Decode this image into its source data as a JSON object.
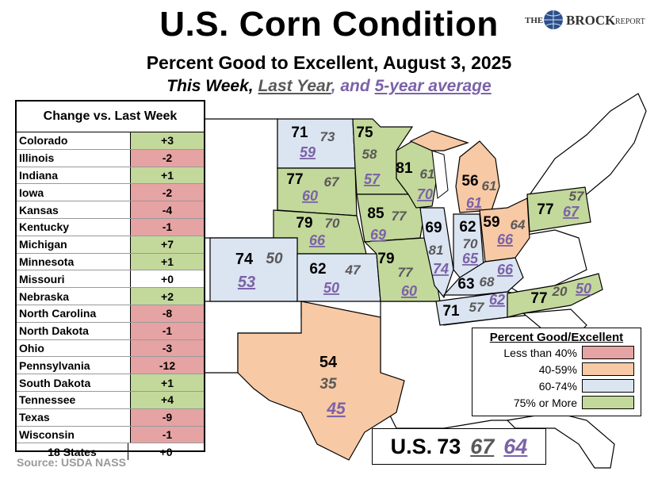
{
  "header": {
    "title": "U.S. Corn Condition",
    "subtitle": "Percent Good to Excellent, August 3, 2025",
    "subtitle2_this": "This Week,",
    "subtitle2_last": "Last Year",
    "subtitle2_and": ", and",
    "subtitle2_avg": "5-year average"
  },
  "brand": {
    "the": "THE",
    "name": "BROCK",
    "report": "REPORT"
  },
  "colors": {
    "less40": "#e6a3a3",
    "r40_59": "#f7c9a4",
    "r60_74": "#dbe4f1",
    "r75": "#c3d89b",
    "last_year": "#595959",
    "avg": "#7b62a8",
    "white": "#ffffff"
  },
  "change_table": {
    "header": "Change vs. Last Week",
    "rows": [
      {
        "state": "Colorado",
        "change": "+3",
        "color": "#c3d89b"
      },
      {
        "state": "Illinois",
        "change": "-2",
        "color": "#e6a3a3"
      },
      {
        "state": "Indiana",
        "change": "+1",
        "color": "#c3d89b"
      },
      {
        "state": "Iowa",
        "change": "-2",
        "color": "#e6a3a3"
      },
      {
        "state": "Kansas",
        "change": "-4",
        "color": "#e6a3a3"
      },
      {
        "state": "Kentucky",
        "change": "-1",
        "color": "#e6a3a3"
      },
      {
        "state": "Michigan",
        "change": "+7",
        "color": "#c3d89b"
      },
      {
        "state": "Minnesota",
        "change": "+1",
        "color": "#c3d89b"
      },
      {
        "state": "Missouri",
        "change": "+0",
        "color": "#ffffff"
      },
      {
        "state": "Nebraska",
        "change": "+2",
        "color": "#c3d89b"
      },
      {
        "state": "North Carolina",
        "change": "-8",
        "color": "#e6a3a3"
      },
      {
        "state": "North Dakota",
        "change": "-1",
        "color": "#e6a3a3"
      },
      {
        "state": "Ohio",
        "change": "-3",
        "color": "#e6a3a3"
      },
      {
        "state": "Pennsylvania",
        "change": "-12",
        "color": "#e6a3a3"
      },
      {
        "state": "South Dakota",
        "change": "+1",
        "color": "#c3d89b"
      },
      {
        "state": "Tennessee",
        "change": "+4",
        "color": "#c3d89b"
      },
      {
        "state": "Texas",
        "change": "-9",
        "color": "#e6a3a3"
      },
      {
        "state": "Wisconsin",
        "change": "-1",
        "color": "#e6a3a3"
      }
    ],
    "total_label": "18 States",
    "total_change": "+0"
  },
  "states": [
    {
      "name": "North Dakota",
      "this_week": "71",
      "last_year": "73",
      "avg": "59",
      "color": "#dbe4f1"
    },
    {
      "name": "Minnesota",
      "this_week": "75",
      "last_year": "58",
      "avg": "57",
      "color": "#c3d89b"
    },
    {
      "name": "South Dakota",
      "this_week": "77",
      "last_year": "67",
      "avg": "60",
      "color": "#c3d89b"
    },
    {
      "name": "Wisconsin",
      "this_week": "81",
      "last_year": "61",
      "avg": "70",
      "color": "#c3d89b"
    },
    {
      "name": "Michigan",
      "this_week": "56",
      "last_year": "61",
      "avg": "61",
      "color": "#f7c9a4"
    },
    {
      "name": "Nebraska",
      "this_week": "79",
      "last_year": "70",
      "avg": "66",
      "color": "#c3d89b"
    },
    {
      "name": "Iowa",
      "this_week": "85",
      "last_year": "77",
      "avg": "69",
      "color": "#c3d89b"
    },
    {
      "name": "Illinois",
      "this_week": "69",
      "last_year": "81",
      "avg": "74",
      "color": "#dbe4f1"
    },
    {
      "name": "Indiana",
      "this_week": "62",
      "last_year": "70",
      "avg": "65",
      "color": "#dbe4f1"
    },
    {
      "name": "Ohio",
      "this_week": "59",
      "last_year": "64",
      "avg": "66",
      "color": "#f7c9a4"
    },
    {
      "name": "Pennsylvania",
      "this_week": "77",
      "last_year": "57",
      "avg": "67",
      "color": "#c3d89b"
    },
    {
      "name": "Colorado",
      "this_week": "74",
      "last_year": "50",
      "avg": "53",
      "color": "#dbe4f1"
    },
    {
      "name": "Kansas",
      "this_week": "62",
      "last_year": "47",
      "avg": "50",
      "color": "#dbe4f1"
    },
    {
      "name": "Missouri",
      "this_week": "79",
      "last_year": "77",
      "avg": "60",
      "color": "#c3d89b"
    },
    {
      "name": "Kentucky",
      "this_week": "63",
      "last_year": "68",
      "avg": "66",
      "color": "#dbe4f1"
    },
    {
      "name": "Tennessee",
      "this_week": "71",
      "last_year": "57",
      "avg": "62",
      "color": "#dbe4f1"
    },
    {
      "name": "North Carolina",
      "this_week": "77",
      "last_year": "20",
      "avg": "50",
      "color": "#c3d89b"
    },
    {
      "name": "Texas",
      "this_week": "54",
      "last_year": "35",
      "avg": "45",
      "color": "#f7c9a4"
    }
  ],
  "legend": {
    "title": "Percent Good/Excellent",
    "items": [
      {
        "label": "Less than 40%",
        "color": "#e6a3a3"
      },
      {
        "label": "40-59%",
        "color": "#f7c9a4"
      },
      {
        "label": "60-74%",
        "color": "#dbe4f1"
      },
      {
        "label": "75% or More",
        "color": "#c3d89b"
      }
    ]
  },
  "us_total": {
    "label": "U.S.",
    "this_week": "73",
    "last_year": "67",
    "avg": "64"
  },
  "source": "Source: USDA NASS"
}
